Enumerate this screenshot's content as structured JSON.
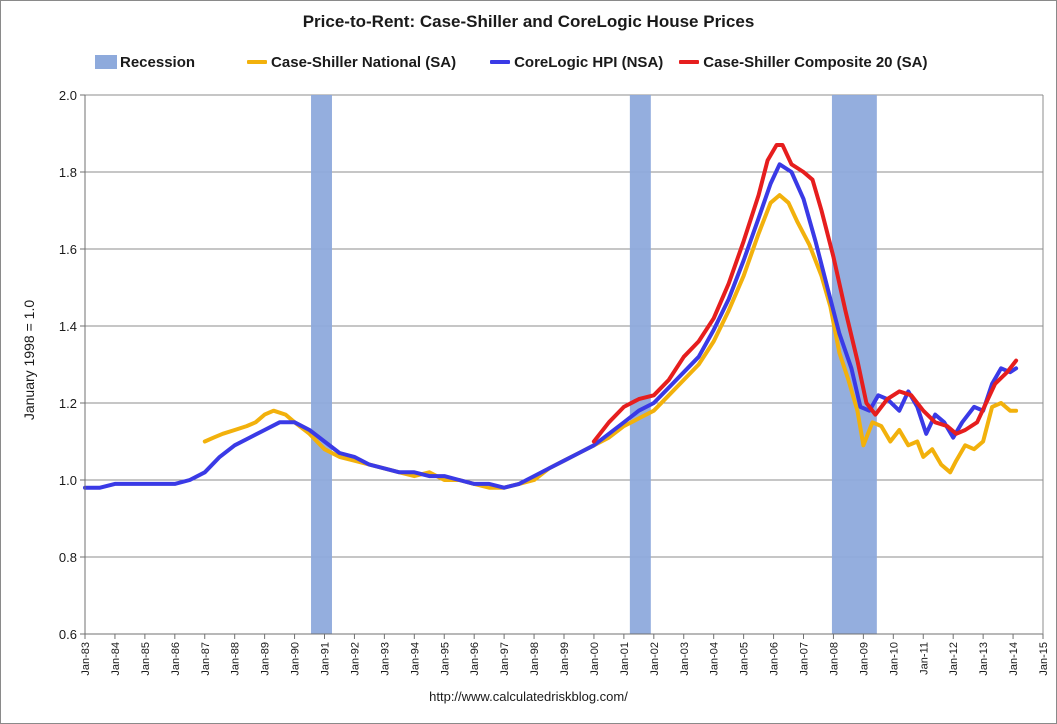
{
  "chart_data": {
    "type": "line",
    "title": "Price-to-Rent: Case-Shiller and CoreLogic House Prices",
    "ylabel": "January 1998 = 1.0",
    "xlabel": "",
    "source": "http://www.calculatedriskblog.com/",
    "ylim": [
      0.6,
      2.0
    ],
    "yticks": [
      0.6,
      0.8,
      1.0,
      1.2,
      1.4,
      1.6,
      1.8,
      2.0
    ],
    "ytick_labels": [
      "0.6",
      "0.8",
      "1.0",
      "1.2",
      "1.4",
      "1.6",
      "1.8",
      "2.0"
    ],
    "xlim": [
      1983,
      2015
    ],
    "xticks": [
      1983,
      1984,
      1985,
      1986,
      1987,
      1988,
      1989,
      1990,
      1991,
      1992,
      1993,
      1994,
      1995,
      1996,
      1997,
      1998,
      1999,
      2000,
      2001,
      2002,
      2003,
      2004,
      2005,
      2006,
      2007,
      2008,
      2009,
      2010,
      2011,
      2012,
      2013,
      2014,
      2015
    ],
    "xtick_labels": [
      "Jan-83",
      "Jan-84",
      "Jan-85",
      "Jan-86",
      "Jan-87",
      "Jan-88",
      "Jan-89",
      "Jan-90",
      "Jan-91",
      "Jan-92",
      "Jan-93",
      "Jan-94",
      "Jan-95",
      "Jan-96",
      "Jan-97",
      "Jan-98",
      "Jan-99",
      "Jan-00",
      "Jan-01",
      "Jan-02",
      "Jan-03",
      "Jan-04",
      "Jan-05",
      "Jan-06",
      "Jan-07",
      "Jan-08",
      "Jan-09",
      "Jan-10",
      "Jan-11",
      "Jan-12",
      "Jan-13",
      "Jan-14",
      "Jan-15"
    ],
    "grid": true,
    "legend_position": "top",
    "recessions": [
      {
        "start": 1990.55,
        "end": 1991.25
      },
      {
        "start": 2001.2,
        "end": 2001.9
      },
      {
        "start": 2007.95,
        "end": 2009.45
      }
    ],
    "legend": [
      {
        "name": "Recession",
        "kind": "band",
        "color": "#8eaadc"
      },
      {
        "name": "Case-Shiller National (SA)",
        "kind": "line",
        "color": "#f2b10c"
      },
      {
        "name": "CoreLogic HPI (NSA)",
        "kind": "line",
        "color": "#3a3ae6"
      },
      {
        "name": "Case-Shiller Composite 20 (SA)",
        "kind": "line",
        "color": "#e61e1e"
      }
    ],
    "series": [
      {
        "name": "Case-Shiller National (SA)",
        "color": "#f2b10c",
        "x": [
          1987.0,
          1987.3,
          1987.6,
          1988.0,
          1988.4,
          1988.7,
          1989.0,
          1989.3,
          1989.7,
          1990.0,
          1990.5,
          1991.0,
          1991.5,
          1992.0,
          1992.5,
          1993.0,
          1993.5,
          1994.0,
          1994.5,
          1995.0,
          1995.5,
          1996.0,
          1996.5,
          1997.0,
          1997.5,
          1998.0,
          1998.5,
          1999.0,
          1999.5,
          2000.0,
          2000.5,
          2001.0,
          2001.5,
          2002.0,
          2002.5,
          2003.0,
          2003.5,
          2004.0,
          2004.5,
          2005.0,
          2005.5,
          2005.9,
          2006.2,
          2006.5,
          2006.8,
          2007.2,
          2007.6,
          2007.9,
          2008.2,
          2008.5,
          2008.8,
          2009.0,
          2009.3,
          2009.6,
          2009.9,
          2010.2,
          2010.5,
          2010.8,
          2011.0,
          2011.3,
          2011.6,
          2011.9,
          2012.1,
          2012.4,
          2012.7,
          2013.0,
          2013.3,
          2013.6,
          2013.9,
          2014.1
        ],
        "values": [
          1.1,
          1.11,
          1.12,
          1.13,
          1.14,
          1.15,
          1.17,
          1.18,
          1.17,
          1.15,
          1.12,
          1.08,
          1.06,
          1.05,
          1.04,
          1.03,
          1.02,
          1.01,
          1.02,
          1.0,
          1.0,
          0.99,
          0.98,
          0.98,
          0.99,
          1.0,
          1.03,
          1.05,
          1.07,
          1.09,
          1.11,
          1.14,
          1.16,
          1.18,
          1.22,
          1.26,
          1.3,
          1.36,
          1.44,
          1.53,
          1.64,
          1.72,
          1.74,
          1.72,
          1.67,
          1.61,
          1.53,
          1.45,
          1.33,
          1.26,
          1.18,
          1.09,
          1.15,
          1.14,
          1.1,
          1.13,
          1.09,
          1.1,
          1.06,
          1.08,
          1.04,
          1.02,
          1.05,
          1.09,
          1.08,
          1.1,
          1.19,
          1.2,
          1.18,
          1.18
        ]
      },
      {
        "name": "CoreLogic HPI (NSA)",
        "color": "#3a3ae6",
        "x": [
          1983.0,
          1983.5,
          1984.0,
          1984.5,
          1985.0,
          1985.5,
          1986.0,
          1986.5,
          1987.0,
          1987.5,
          1988.0,
          1988.5,
          1989.0,
          1989.5,
          1990.0,
          1990.5,
          1991.0,
          1991.5,
          1992.0,
          1992.5,
          1993.0,
          1993.5,
          1994.0,
          1994.5,
          1995.0,
          1995.5,
          1996.0,
          1996.5,
          1997.0,
          1997.5,
          1998.0,
          1998.5,
          1999.0,
          1999.5,
          2000.0,
          2000.5,
          2001.0,
          2001.5,
          2002.0,
          2002.5,
          2003.0,
          2003.5,
          2004.0,
          2004.5,
          2005.0,
          2005.5,
          2005.9,
          2006.2,
          2006.6,
          2007.0,
          2007.4,
          2007.8,
          2008.2,
          2008.6,
          2008.9,
          2009.2,
          2009.5,
          2009.8,
          2010.2,
          2010.5,
          2010.8,
          2011.1,
          2011.4,
          2011.7,
          2012.0,
          2012.3,
          2012.7,
          2013.0,
          2013.3,
          2013.6,
          2013.9,
          2014.1
        ],
        "values": [
          0.98,
          0.98,
          0.99,
          0.99,
          0.99,
          0.99,
          0.99,
          1.0,
          1.02,
          1.06,
          1.09,
          1.11,
          1.13,
          1.15,
          1.15,
          1.13,
          1.1,
          1.07,
          1.06,
          1.04,
          1.03,
          1.02,
          1.02,
          1.01,
          1.01,
          1.0,
          0.99,
          0.99,
          0.98,
          0.99,
          1.01,
          1.03,
          1.05,
          1.07,
          1.09,
          1.12,
          1.15,
          1.18,
          1.2,
          1.24,
          1.28,
          1.32,
          1.39,
          1.47,
          1.57,
          1.68,
          1.77,
          1.82,
          1.8,
          1.73,
          1.62,
          1.5,
          1.38,
          1.29,
          1.19,
          1.18,
          1.22,
          1.21,
          1.18,
          1.23,
          1.19,
          1.12,
          1.17,
          1.15,
          1.11,
          1.15,
          1.19,
          1.18,
          1.25,
          1.29,
          1.28,
          1.29
        ]
      },
      {
        "name": "Case-Shiller Composite 20 (SA)",
        "color": "#e61e1e",
        "x": [
          2000.0,
          2000.5,
          2001.0,
          2001.5,
          2002.0,
          2002.5,
          2003.0,
          2003.5,
          2004.0,
          2004.5,
          2005.0,
          2005.5,
          2005.8,
          2006.1,
          2006.3,
          2006.6,
          2007.0,
          2007.3,
          2007.6,
          2008.0,
          2008.4,
          2008.8,
          2009.1,
          2009.4,
          2009.8,
          2010.2,
          2010.6,
          2011.0,
          2011.4,
          2011.8,
          2012.1,
          2012.4,
          2012.8,
          2013.1,
          2013.4,
          2013.8,
          2014.1
        ],
        "values": [
          1.1,
          1.15,
          1.19,
          1.21,
          1.22,
          1.26,
          1.32,
          1.36,
          1.42,
          1.51,
          1.62,
          1.74,
          1.83,
          1.87,
          1.87,
          1.82,
          1.8,
          1.78,
          1.7,
          1.58,
          1.44,
          1.31,
          1.2,
          1.17,
          1.21,
          1.23,
          1.22,
          1.18,
          1.15,
          1.14,
          1.12,
          1.13,
          1.15,
          1.2,
          1.25,
          1.28,
          1.31
        ]
      }
    ]
  }
}
